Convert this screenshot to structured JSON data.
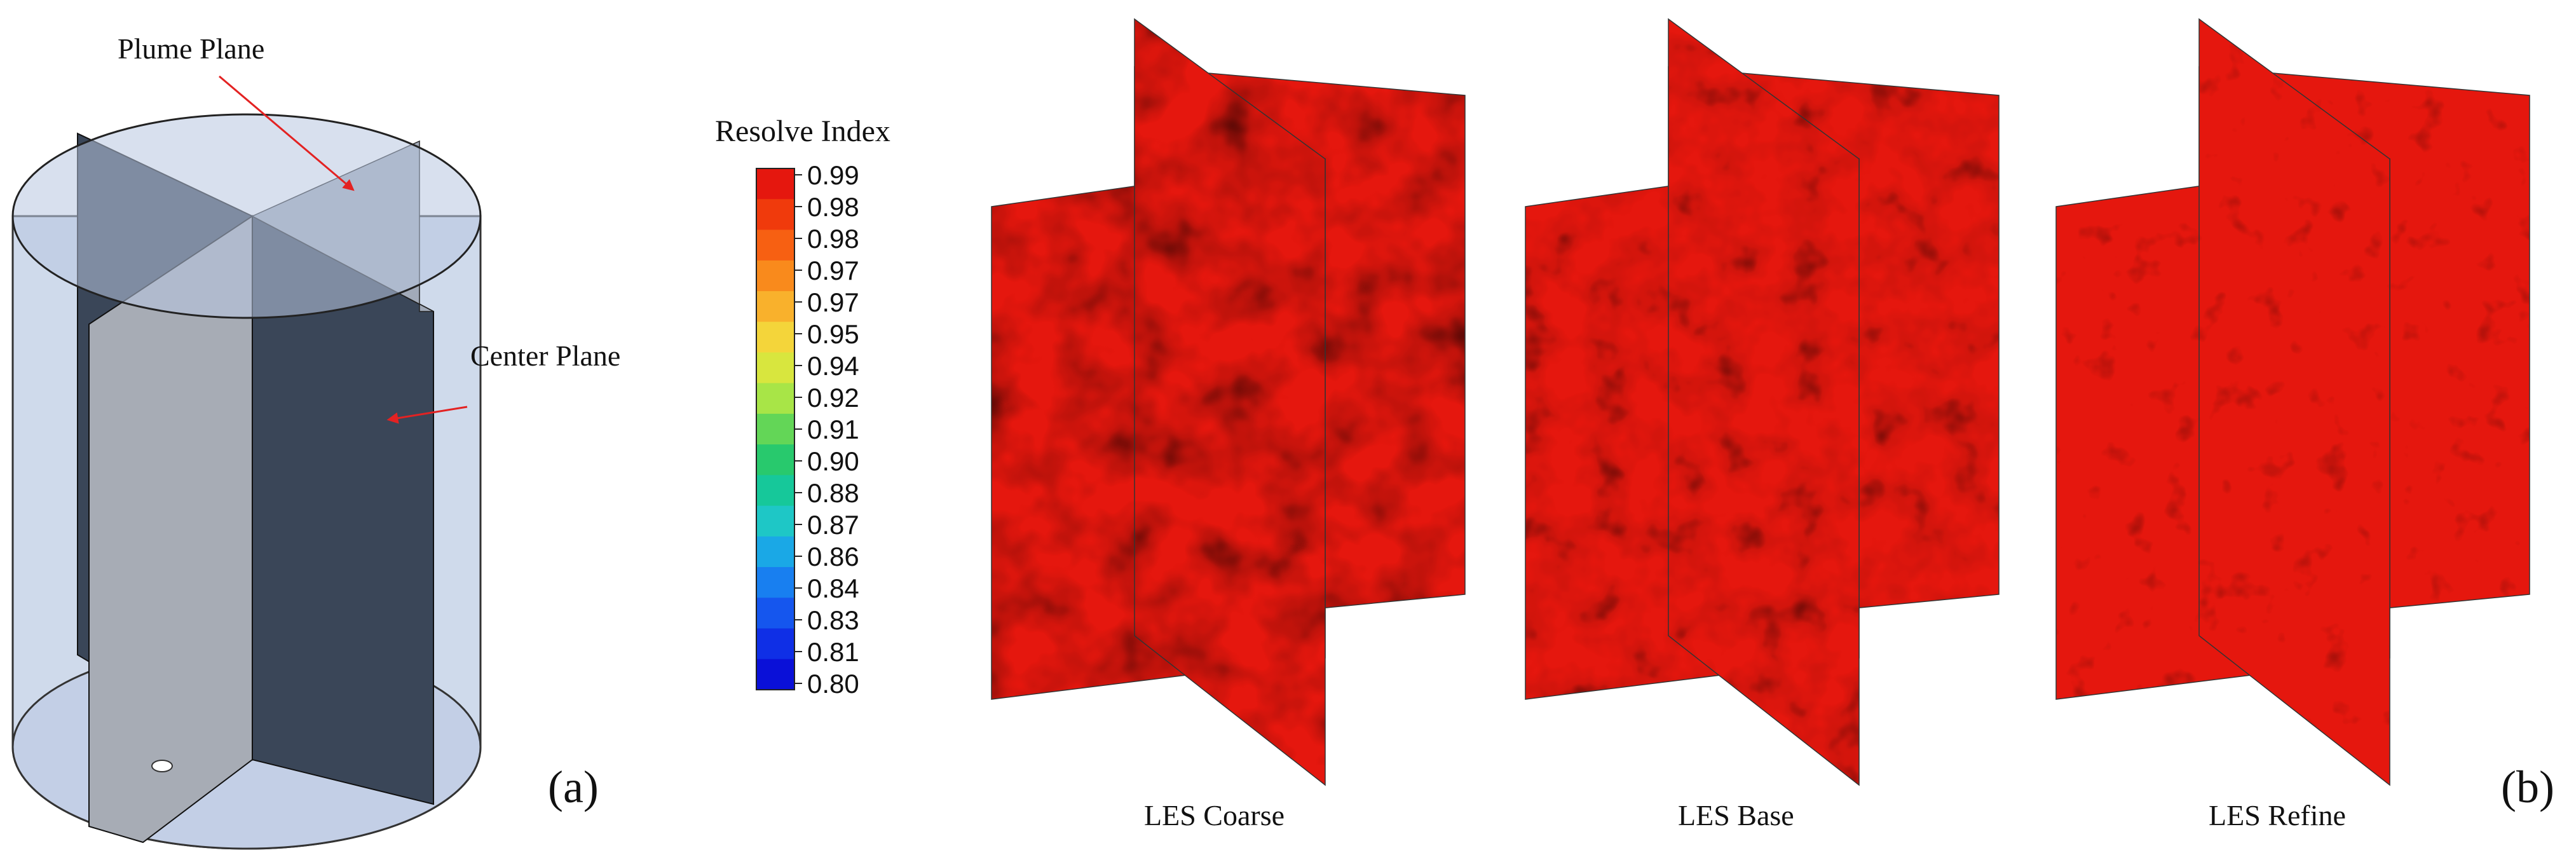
{
  "panel_a": {
    "label": "(a)",
    "annotations": {
      "plume_plane": "Plume Plane",
      "center_plane": "Center Plane"
    },
    "colors": {
      "cylinder_fill": "#c7d3e8",
      "plane_dark": "#3a4658",
      "plane_light": "#a7acb5",
      "arrow": "#e32222"
    }
  },
  "panel_b": {
    "label": "(b)",
    "colorbar": {
      "title": "Resolve Index",
      "ticks": [
        "0.99",
        "0.98",
        "0.98",
        "0.97",
        "0.97",
        "0.95",
        "0.94",
        "0.92",
        "0.91",
        "0.90",
        "0.88",
        "0.87",
        "0.86",
        "0.84",
        "0.83",
        "0.81",
        "0.80"
      ],
      "colors": [
        "#e5170e",
        "#f03a0c",
        "#f76012",
        "#f98a1c",
        "#f9b12c",
        "#f4d53a",
        "#d8e63e",
        "#a8e547",
        "#63d657",
        "#28c96d",
        "#16c89a",
        "#1ec7c6",
        "#1aa8e6",
        "#187ff0",
        "#1556ee",
        "#0f2fe6",
        "#0a10d8"
      ]
    },
    "cases": [
      {
        "id": "coarse",
        "label": "LES Coarse"
      },
      {
        "id": "base",
        "label": "LES Base"
      },
      {
        "id": "refine",
        "label": "LES Refine"
      }
    ]
  }
}
